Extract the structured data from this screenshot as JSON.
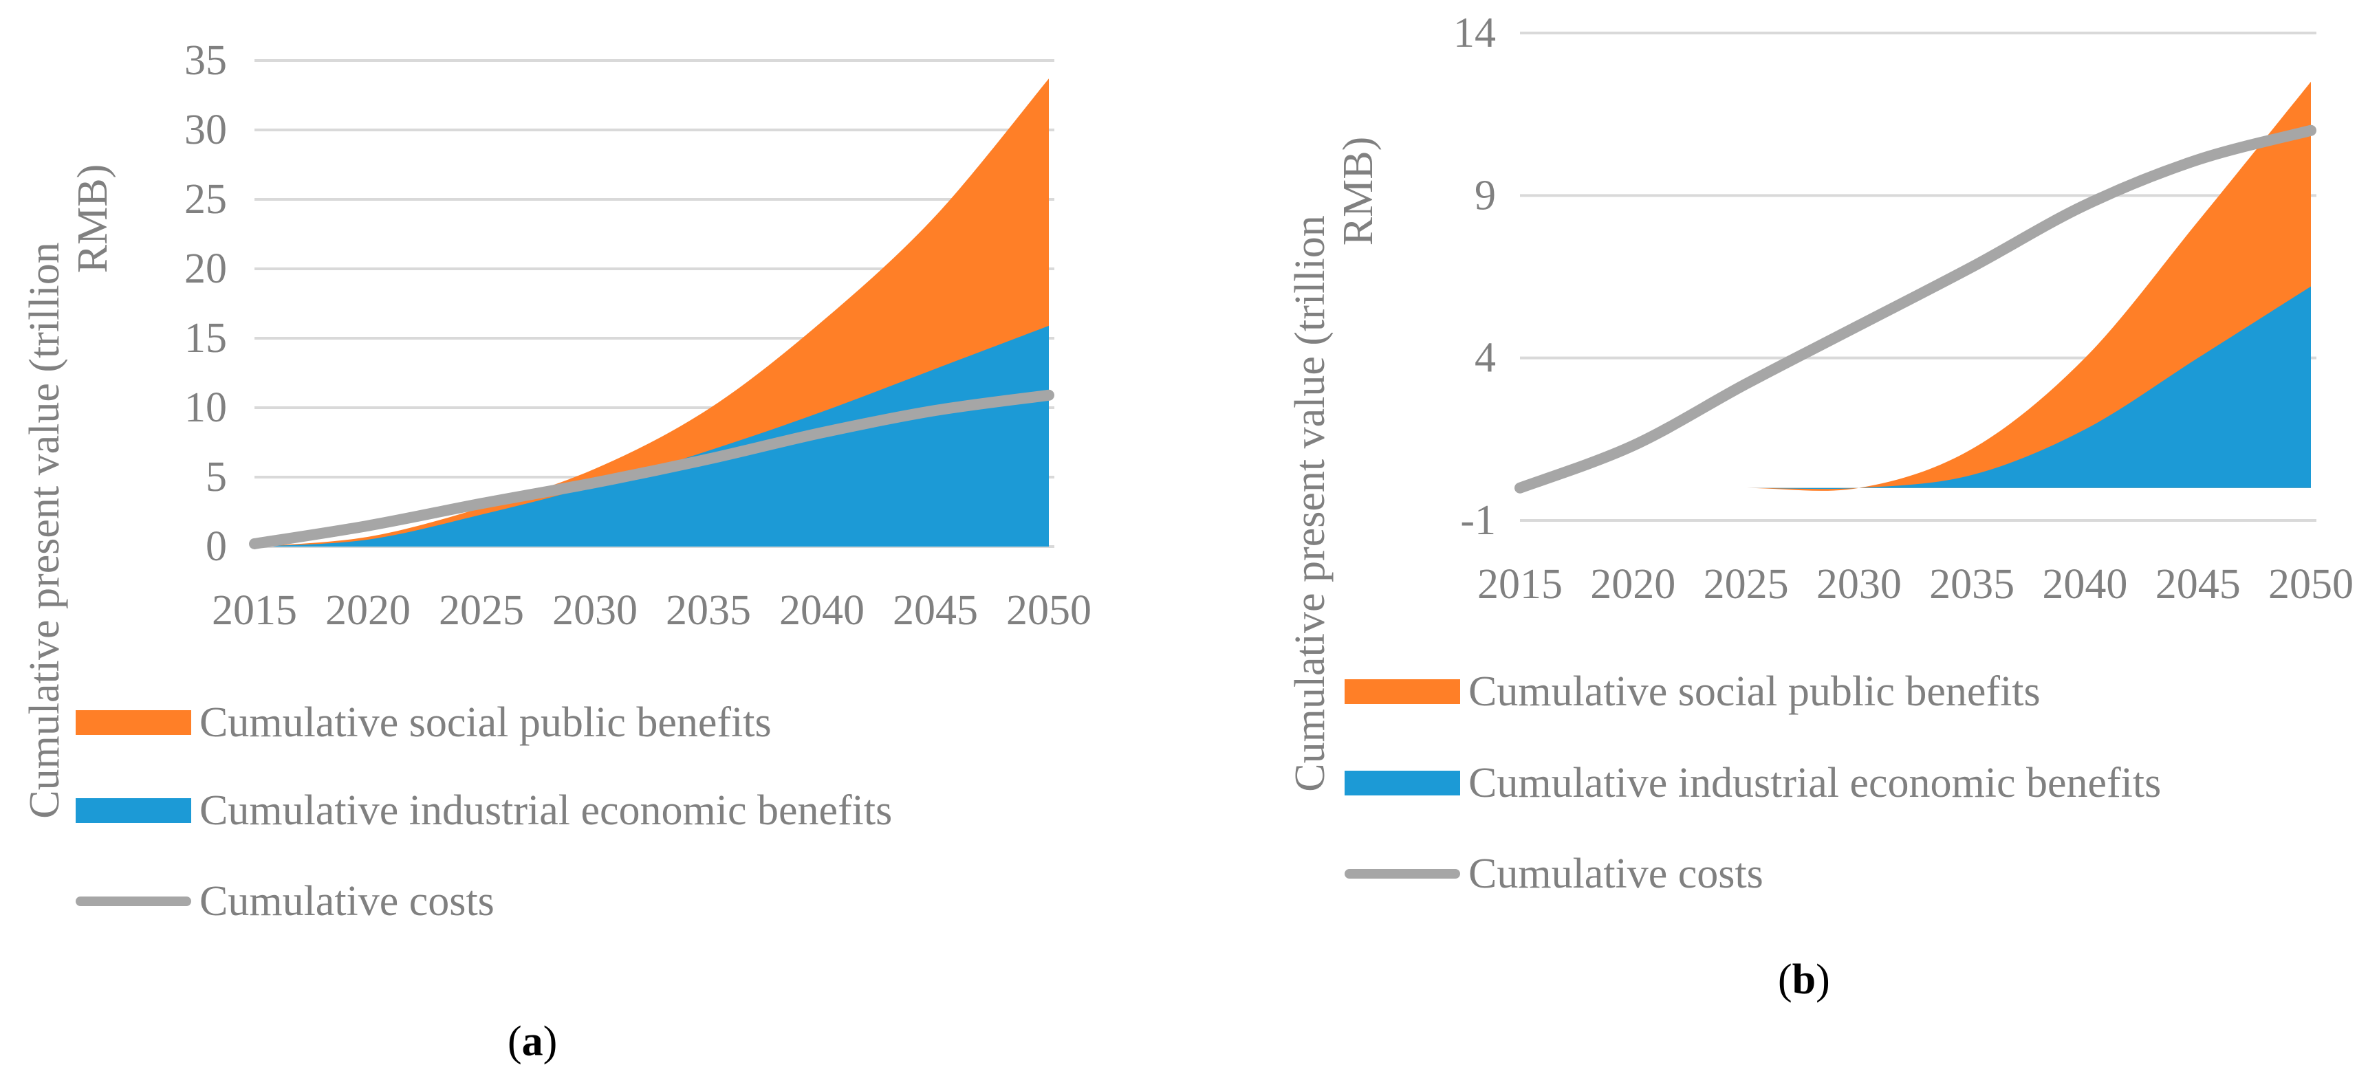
{
  "colors": {
    "social": "#FF7F27",
    "industrial": "#1C9AD6",
    "costs": "#A6A6A6",
    "grid": "#D9D9D9",
    "text": "#808080"
  },
  "legend": {
    "social": "Cumulative social public benefits",
    "industrial": "Cumulative industrial economic benefits",
    "costs": "Cumulative costs"
  },
  "chart_data": [
    {
      "panel": "a",
      "type": "area",
      "caption_letter": "a",
      "ylabel": "Cumulative present value (trillion RMB)",
      "ylim": [
        0,
        35
      ],
      "yticks": [
        0,
        5,
        10,
        15,
        20,
        25,
        30,
        35
      ],
      "xticks": [
        2015,
        2020,
        2025,
        2030,
        2035,
        2040,
        2045,
        2050
      ],
      "x": [
        2015,
        2020,
        2025,
        2030,
        2035,
        2040,
        2045,
        2050
      ],
      "series": [
        {
          "name": "Cumulative industrial economic benefits",
          "kind": "stacked-area",
          "values": [
            0.0,
            0.5,
            2.3,
            4.4,
            6.9,
            9.7,
            12.8,
            15.9
          ]
        },
        {
          "name": "Cumulative social public benefits",
          "kind": "stacked-area",
          "values": [
            0.0,
            0.2,
            0.5,
            1.2,
            3.0,
            6.5,
            11.0,
            17.8
          ]
        },
        {
          "name": "Cumulative costs",
          "kind": "line",
          "values": [
            0.2,
            1.5,
            3.1,
            4.6,
            6.3,
            8.2,
            9.8,
            10.9
          ]
        }
      ]
    },
    {
      "panel": "b",
      "type": "area",
      "caption_letter": "b",
      "ylabel": "Cumulative present value (trillion RMB)",
      "ylim": [
        -1,
        14
      ],
      "yticks": [
        -1,
        4,
        9,
        14
      ],
      "xticks": [
        2015,
        2020,
        2025,
        2030,
        2035,
        2040,
        2045,
        2050
      ],
      "x": [
        2015,
        2020,
        2025,
        2030,
        2035,
        2040,
        2045,
        2050
      ],
      "series": [
        {
          "name": "Cumulative industrial economic benefits",
          "kind": "stacked-area",
          "values": [
            0,
            0,
            0,
            0.0,
            0.4,
            1.8,
            4.0,
            6.2
          ]
        },
        {
          "name": "Cumulative social public benefits",
          "kind": "stacked-area",
          "values": [
            0,
            0,
            0,
            0.0,
            0.8,
            2.2,
            4.2,
            6.3
          ]
        },
        {
          "name": "Cumulative costs",
          "kind": "line",
          "values": [
            0.0,
            1.3,
            3.2,
            5.0,
            6.8,
            8.7,
            10.1,
            11.0
          ]
        }
      ]
    }
  ]
}
